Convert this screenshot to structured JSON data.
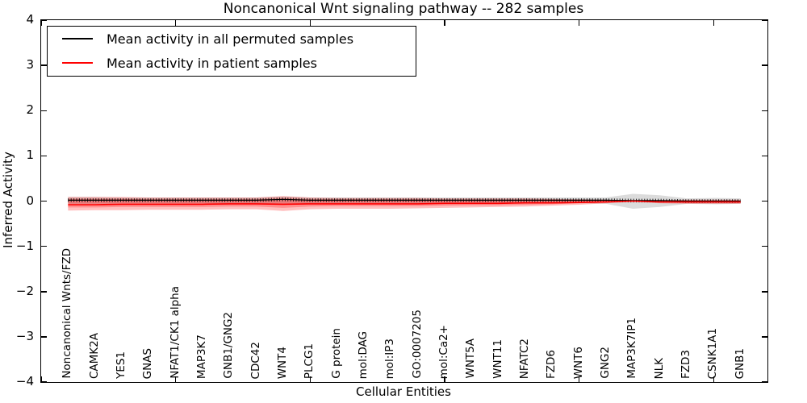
{
  "chart_data": {
    "type": "line",
    "title": "Noncanonical Wnt signaling pathway -- 282 samples",
    "xlabel": "Cellular Entities",
    "ylabel": "Inferred Activity",
    "ylim": [
      -4,
      4
    ],
    "yticks": [
      4,
      3,
      2,
      1,
      0,
      -1,
      -2,
      -3,
      -4
    ],
    "x_value_range": [
      0,
      27
    ],
    "x_axis_tick_values": [
      0,
      5,
      10,
      15,
      20,
      25
    ],
    "grid": false,
    "legend_position": "upper-left",
    "categories": [
      "Noncanonical Wnts/FZD",
      "CAMK2A",
      "YES1",
      "GNAS",
      "NFAT1/CK1 alpha",
      "MAP3K7",
      "GNB1/GNG2",
      "CDC42",
      "WNT4",
      "PLCG1",
      "G protein",
      "mol:DAG",
      "mol:IP3",
      "GO:0007205",
      "mol:Ca2+",
      "WNT5A",
      "WNT11",
      "NFATC2",
      "FZD6",
      "WNT6",
      "GNG2",
      "MAP3K7IP1",
      "NLK",
      "FZD3",
      "CSNK1A1",
      "GNB1"
    ],
    "series": [
      {
        "name": "Mean activity in all permuted samples",
        "color": "#000000",
        "marker": "dense-vertical-dashes",
        "values": [
          0.02,
          0.02,
          0.02,
          0.02,
          0.02,
          0.02,
          0.02,
          0.02,
          0.04,
          0.02,
          0.02,
          0.02,
          0.02,
          0.02,
          0.02,
          0.02,
          0.02,
          0.02,
          0.02,
          0.02,
          0.02,
          0.01,
          0.01,
          0.0,
          0.0,
          0.0
        ]
      },
      {
        "name": "Mean activity in patient samples",
        "color": "#ff0000",
        "marker": "none",
        "values": [
          -0.08,
          -0.08,
          -0.07,
          -0.07,
          -0.07,
          -0.07,
          -0.06,
          -0.06,
          -0.07,
          -0.06,
          -0.06,
          -0.06,
          -0.06,
          -0.06,
          -0.05,
          -0.05,
          -0.05,
          -0.04,
          -0.04,
          -0.03,
          -0.02,
          0.0,
          -0.02,
          -0.02,
          -0.02,
          -0.02
        ]
      }
    ],
    "bands": [
      {
        "name": "permuted-samples-spread",
        "color": "#999999",
        "opacity": 0.35,
        "upper": [
          0.09,
          0.09,
          0.08,
          0.08,
          0.08,
          0.08,
          0.08,
          0.08,
          0.1,
          0.08,
          0.08,
          0.08,
          0.08,
          0.08,
          0.08,
          0.08,
          0.08,
          0.08,
          0.08,
          0.08,
          0.08,
          0.16,
          0.13,
          0.06,
          0.07,
          0.06
        ],
        "lower": [
          -0.06,
          -0.06,
          -0.05,
          -0.05,
          -0.05,
          -0.05,
          -0.05,
          -0.05,
          -0.06,
          -0.05,
          -0.05,
          -0.05,
          -0.05,
          -0.05,
          -0.05,
          -0.05,
          -0.05,
          -0.05,
          -0.05,
          -0.05,
          -0.06,
          -0.17,
          -0.13,
          -0.06,
          -0.07,
          -0.06
        ]
      },
      {
        "name": "patient-samples-outer-spread",
        "color": "#ff0000",
        "opacity": 0.25,
        "upper": [
          0.09,
          0.09,
          0.09,
          0.08,
          0.08,
          0.08,
          0.08,
          0.08,
          0.11,
          0.08,
          0.07,
          0.07,
          0.07,
          0.07,
          0.06,
          0.06,
          0.06,
          0.06,
          0.05,
          0.04,
          0.03,
          0.01,
          0.02,
          0.03,
          0.03,
          0.03
        ],
        "lower": [
          -0.21,
          -0.2,
          -0.2,
          -0.19,
          -0.19,
          -0.19,
          -0.18,
          -0.18,
          -0.22,
          -0.18,
          -0.17,
          -0.17,
          -0.17,
          -0.16,
          -0.15,
          -0.14,
          -0.13,
          -0.12,
          -0.1,
          -0.08,
          -0.05,
          -0.01,
          -0.05,
          -0.06,
          -0.06,
          -0.06
        ]
      },
      {
        "name": "patient-samples-inner-spread",
        "color": "#ff0000",
        "opacity": 0.25,
        "upper": [
          0.05,
          0.05,
          0.05,
          0.04,
          0.04,
          0.04,
          0.04,
          0.04,
          0.06,
          0.04,
          0.04,
          0.04,
          0.04,
          0.04,
          0.03,
          0.03,
          0.03,
          0.03,
          0.03,
          0.02,
          0.01,
          0.0,
          0.01,
          0.01,
          0.01,
          0.01
        ],
        "lower": [
          -0.14,
          -0.14,
          -0.13,
          -0.13,
          -0.13,
          -0.13,
          -0.12,
          -0.12,
          -0.15,
          -0.12,
          -0.11,
          -0.11,
          -0.11,
          -0.11,
          -0.1,
          -0.09,
          -0.09,
          -0.08,
          -0.07,
          -0.05,
          -0.03,
          -0.01,
          -0.03,
          -0.04,
          -0.04,
          -0.04
        ]
      }
    ]
  }
}
